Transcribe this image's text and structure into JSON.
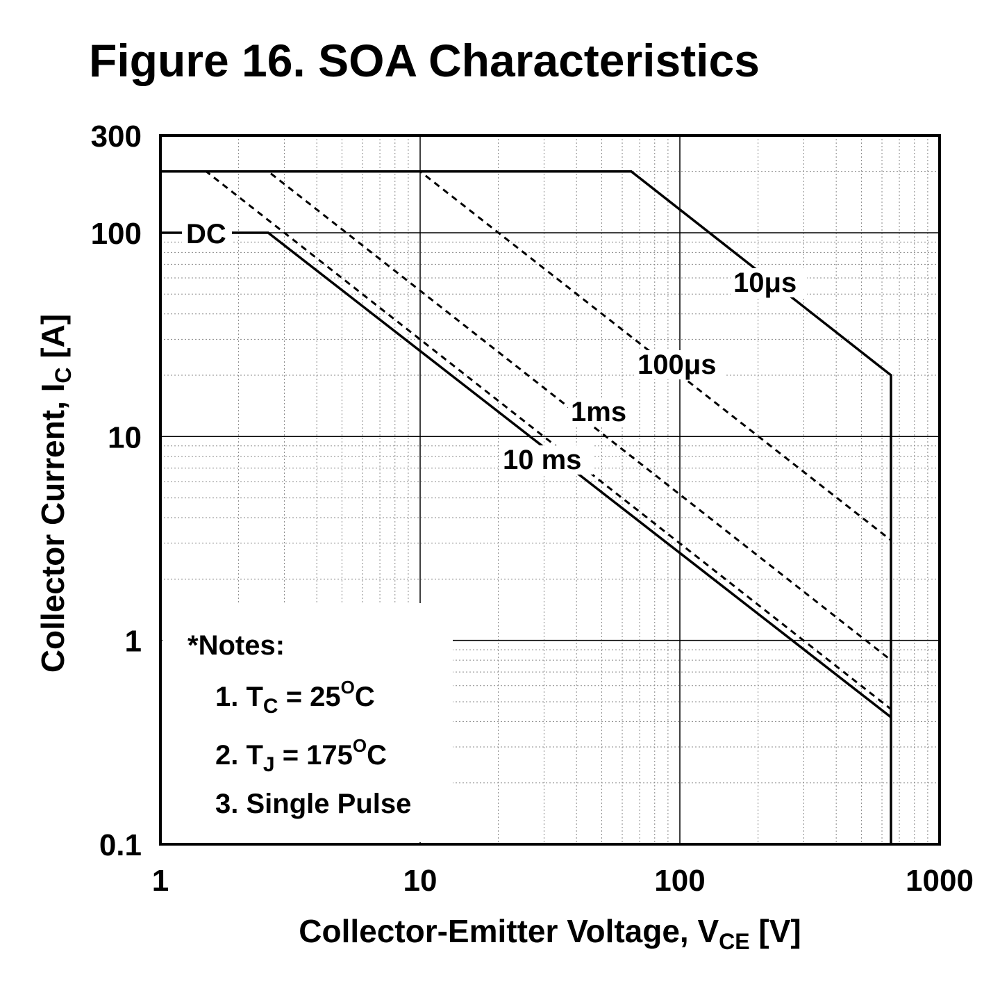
{
  "chart_data": {
    "type": "line",
    "title": "Figure 16. SOA Characteristics",
    "xlabel": {
      "main": "Collector-Emitter Voltage, V",
      "sub": "CE",
      "unit": " [V]"
    },
    "ylabel": {
      "main": "Collector Current, I",
      "sub": "C",
      "unit": " [A]"
    },
    "x_scale": "log",
    "y_scale": "log",
    "xlim": [
      1,
      1000
    ],
    "ylim": [
      0.1,
      300
    ],
    "x_ticks": [
      1,
      10,
      100,
      1000
    ],
    "x_tick_labels": [
      "1",
      "10",
      "100",
      "1000"
    ],
    "y_ticks": [
      0.1,
      1,
      10,
      100,
      300
    ],
    "y_tick_labels": [
      "0.1",
      "1",
      "10",
      "100",
      "300"
    ],
    "grid": true,
    "series": [
      {
        "name": "10μs",
        "style": "solid",
        "x": [
          1,
          65,
          650,
          650,
          650
        ],
        "y": [
          200,
          200,
          20,
          20,
          0.1
        ]
      },
      {
        "name": "100μs",
        "style": "dashed",
        "x": [
          1,
          10,
          650
        ],
        "y": [
          200,
          200,
          3.1
        ]
      },
      {
        "name": "1ms",
        "style": "dashed",
        "x": [
          1,
          2.6,
          650
        ],
        "y": [
          200,
          200,
          0.8
        ]
      },
      {
        "name": "10 ms",
        "style": "dashed",
        "x": [
          1,
          1.5,
          650
        ],
        "y": [
          200,
          200,
          0.46
        ]
      },
      {
        "name": "DC",
        "style": "solid",
        "x": [
          1,
          2.6,
          650
        ],
        "y": [
          100,
          100,
          0.42
        ]
      }
    ],
    "annotations": {
      "dc": "DC",
      "t10us": "10μs",
      "t100us": "100μs",
      "t1ms": "1ms",
      "t10ms": "10 ms"
    }
  },
  "notes": {
    "heading": "*Notes:",
    "n1_prefix": "1. T",
    "n1_sub": "C",
    "n1_mid": " = 25",
    "n1_sup": "O",
    "n1_end": "C",
    "n2_prefix": "2. T",
    "n2_sub": "J",
    "n2_mid": " = 175",
    "n2_sup": "O",
    "n2_end": "C",
    "n3": "3. Single Pulse"
  }
}
